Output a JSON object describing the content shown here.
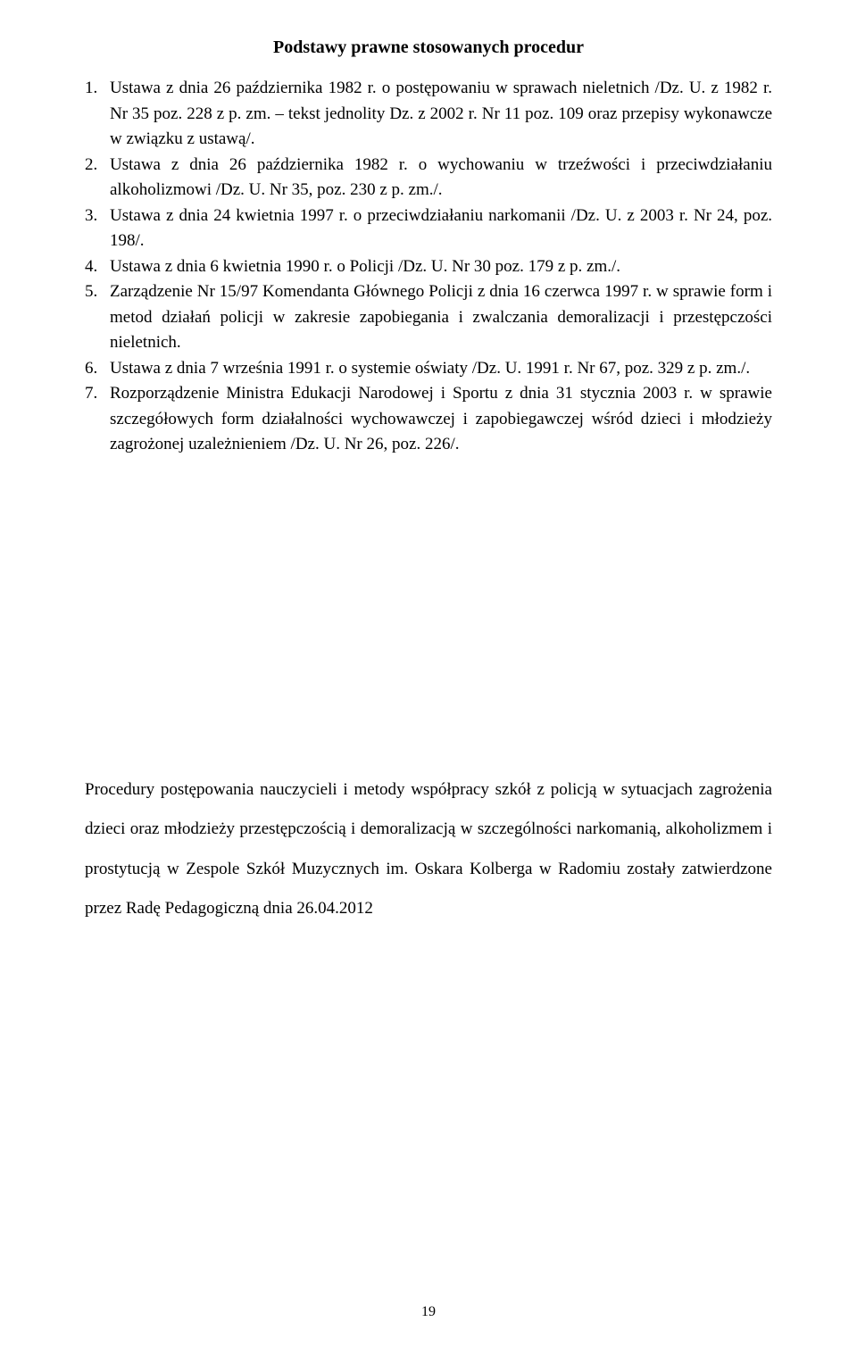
{
  "title": "Podstawy prawne stosowanych procedur",
  "items": [
    "Ustawa z dnia 26 października 1982 r. o postępowaniu w sprawach nieletnich /Dz. U. z 1982 r. Nr 35 poz. 228 z p. zm. – tekst jednolity Dz. z 2002 r. Nr 11 poz. 109 oraz przepisy wykonawcze w związku z ustawą/.",
    "Ustawa z dnia 26 października 1982 r. o wychowaniu w trzeźwości i przeciwdziałaniu alkoholizmowi /Dz. U. Nr 35, poz. 230 z p. zm./.",
    "Ustawa z dnia 24 kwietnia 1997 r. o przeciwdziałaniu narkomanii /Dz. U. z 2003 r. Nr  24, poz. 198/.",
    "Ustawa z dnia 6 kwietnia 1990 r. o Policji /Dz. U. Nr 30 poz. 179 z p. zm./.",
    "Zarządzenie Nr 15/97 Komendanta Głównego Policji z dnia 16 czerwca 1997 r. w sprawie form i metod działań policji w zakresie zapobiegania i zwalczania demoralizacji i przestępczości nieletnich.",
    "Ustawa z dnia 7 września 1991 r. o systemie oświaty /Dz. U. 1991 r. Nr 67, poz. 329 z p. zm./.",
    "Rozporządzenie Ministra Edukacji Narodowej i Sportu z dnia 31 stycznia 2003 r. w sprawie szczegółowych form działalności wychowawczej i zapobiegawczej wśród dzieci i młodzieży zagrożonej uzależnieniem /Dz. U. Nr 26, poz. 226/."
  ],
  "closing": "Procedury postępowania nauczycieli i metody współpracy szkół z policją w sytuacjach zagrożenia dzieci oraz młodzieży przestępczością i demoralizacją w szczególności narkomanią, alkoholizmem i prostytucją w Zespole Szkół Muzycznych im. Oskara Kolberga w Radomiu zostały zatwierdzone przez Radę Pedagogiczną dnia 26.04.2012",
  "pageNumber": "19"
}
